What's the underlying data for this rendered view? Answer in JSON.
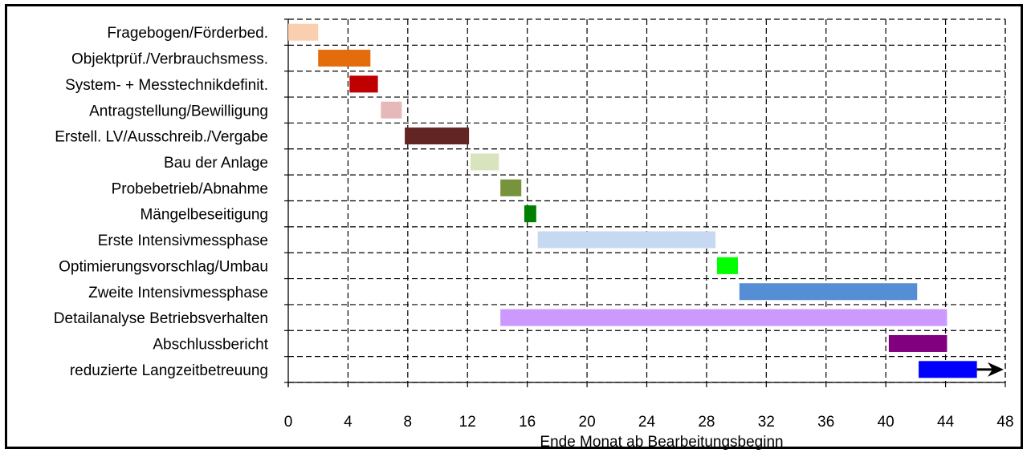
{
  "chart_data": {
    "type": "bar",
    "orientation": "horizontal-gantt",
    "xlabel": "Ende Monat ab Bearbeitungsbeginn",
    "xlim": [
      0,
      48
    ],
    "xticks": [
      0,
      4,
      8,
      12,
      16,
      20,
      24,
      28,
      32,
      36,
      40,
      44,
      48
    ],
    "grid": true,
    "tasks": [
      {
        "label": "Fragebogen/Förderbed.",
        "start": 0,
        "end": 2,
        "color": "#F9CFB0"
      },
      {
        "label": "Objektprüf./Verbrauchsmess.",
        "start": 2,
        "end": 5.5,
        "color": "#E46C0A"
      },
      {
        "label": "System- + Messtechnikdefinit.",
        "start": 4.1,
        "end": 6,
        "color": "#C00000"
      },
      {
        "label": "Antragstellung/Bewilligung",
        "start": 6.2,
        "end": 7.6,
        "color": "#E6B9B8"
      },
      {
        "label": "Erstell. LV/Ausschreib./Vergabe",
        "start": 7.8,
        "end": 12.1,
        "color": "#632523"
      },
      {
        "label": "Bau der Anlage",
        "start": 12.2,
        "end": 14.1,
        "color": "#D7E4BD"
      },
      {
        "label": "Probebetrieb/Abnahme",
        "start": 14.2,
        "end": 15.6,
        "color": "#77933C"
      },
      {
        "label": "Mängelbeseitigung",
        "start": 15.8,
        "end": 16.6,
        "color": "#008000"
      },
      {
        "label": "Erste Intensivmessphase",
        "start": 16.7,
        "end": 28.6,
        "color": "#C6D9F1"
      },
      {
        "label": "Optimierungsvorschlag/Umbau",
        "start": 28.7,
        "end": 30.1,
        "color": "#00FF00"
      },
      {
        "label": "Zweite Intensivmessphase",
        "start": 30.2,
        "end": 42.1,
        "color": "#558ED5"
      },
      {
        "label": "Detailanalyse  Betriebsverhalten",
        "start": 14.2,
        "end": 44.1,
        "color": "#CC99FF"
      },
      {
        "label": "Abschlussbericht",
        "start": 40.2,
        "end": 44.1,
        "color": "#800080"
      },
      {
        "label": "reduzierte Langzeitbetreuung",
        "start": 42.2,
        "end": 46.1,
        "color": "#0000FF",
        "arrow_to": 48
      }
    ]
  }
}
